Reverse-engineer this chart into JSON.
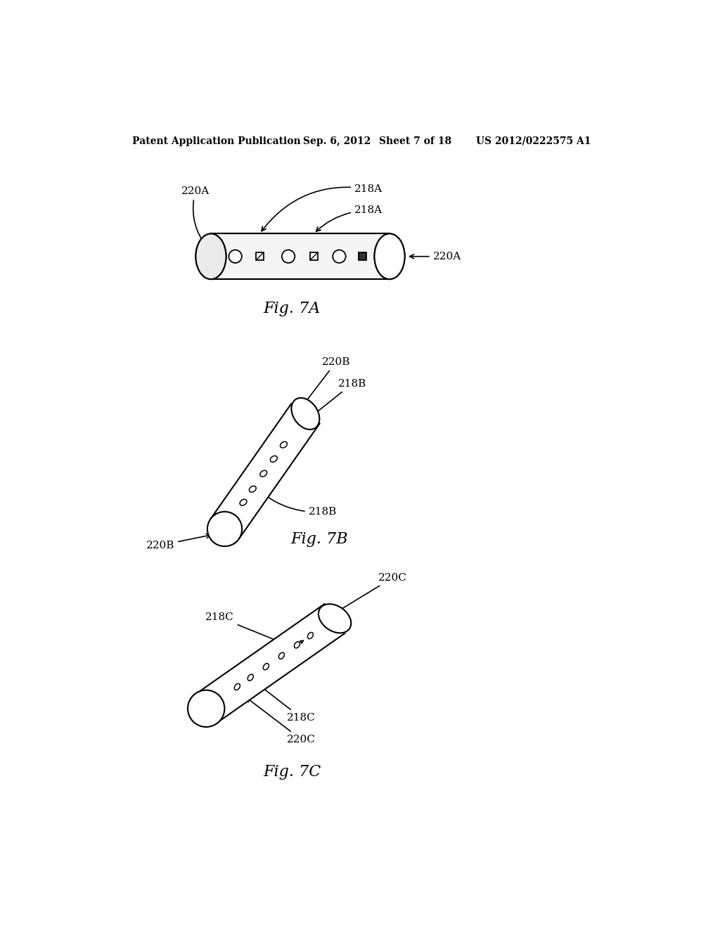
{
  "header_left": "Patent Application Publication",
  "header_mid": "Sep. 6, 2012   Sheet 7 of 18",
  "header_right": "US 2012/0222575 A1",
  "fig7a_label": "Fig. 7A",
  "fig7b_label": "Fig. 7B",
  "fig7c_label": "Fig. 7C",
  "background_color": "#ffffff",
  "line_color": "#000000"
}
